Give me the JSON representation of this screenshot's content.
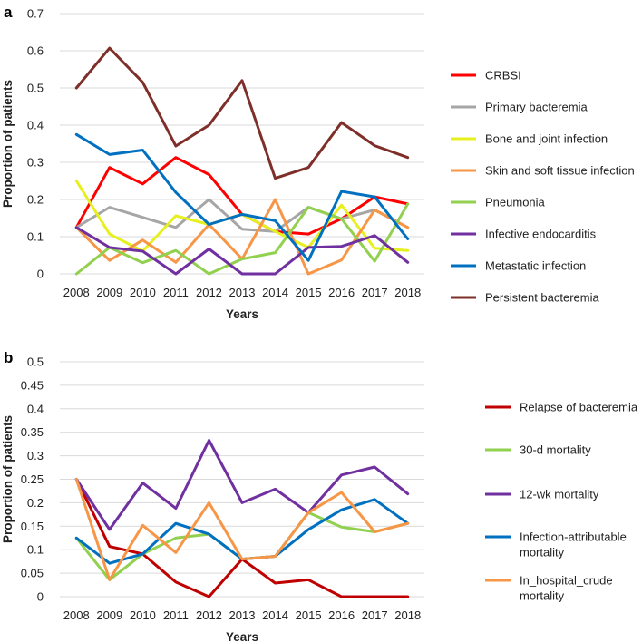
{
  "chart_data": [
    {
      "panel_label": "a",
      "type": "line",
      "xlabel": "Years",
      "ylabel": "Proportion of patients",
      "ylim": [
        0,
        0.7
      ],
      "yticks": [
        "0",
        "0.1",
        "0.2",
        "0.3",
        "0.4",
        "0.5",
        "0.6",
        "0.7"
      ],
      "grid": true,
      "legend_position": "right",
      "categories": [
        "2008",
        "2009",
        "2010",
        "2011",
        "2012",
        "2013",
        "2014",
        "2015",
        "2016",
        "2017",
        "2018"
      ],
      "series": [
        {
          "name": "CRBSI",
          "color": "#ff0000",
          "values": [
            0.125,
            0.286,
            0.242,
            0.313,
            0.267,
            0.16,
            0.114,
            0.107,
            0.148,
            0.207,
            0.188
          ]
        },
        {
          "name": "Primary bacteremia",
          "color": "#a6a6a6",
          "values": [
            0.125,
            0.179,
            0.152,
            0.125,
            0.2,
            0.12,
            0.114,
            0.179,
            0.148,
            0.172,
            0.125
          ]
        },
        {
          "name": "Bone and joint infection",
          "color": "#e6f01e",
          "values": [
            0.25,
            0.107,
            0.061,
            0.156,
            0.133,
            0.16,
            0.114,
            0.071,
            0.185,
            0.069,
            0.063
          ]
        },
        {
          "name": "Skin and soft tissue infection",
          "color": "#f79646",
          "values": [
            0.125,
            0.036,
            0.091,
            0.031,
            0.133,
            0.04,
            0.2,
            0.0,
            0.037,
            0.172,
            0.125
          ]
        },
        {
          "name": "Pneumonia",
          "color": "#92d050",
          "values": [
            0.0,
            0.071,
            0.03,
            0.063,
            0.0,
            0.04,
            0.057,
            0.179,
            0.148,
            0.034,
            0.188
          ]
        },
        {
          "name": "Infective endocarditis",
          "color": "#7030a0",
          "values": [
            0.125,
            0.071,
            0.061,
            0.0,
            0.067,
            0.0,
            0.0,
            0.071,
            0.074,
            0.103,
            0.031
          ]
        },
        {
          "name": "Metastatic infection",
          "color": "#0070c0",
          "values": [
            0.375,
            0.321,
            0.333,
            0.219,
            0.133,
            0.16,
            0.143,
            0.036,
            0.222,
            0.207,
            0.094
          ]
        },
        {
          "name": "Persistent bacteremia",
          "color": "#7f2f2a",
          "values": [
            0.5,
            0.607,
            0.515,
            0.344,
            0.4,
            0.52,
            0.257,
            0.286,
            0.407,
            0.345,
            0.313
          ]
        }
      ]
    },
    {
      "panel_label": "b",
      "type": "line",
      "xlabel": "Years",
      "ylabel": "Proportion of patients",
      "ylim": [
        0,
        0.5
      ],
      "yticks": [
        "0",
        "0.05",
        "0.1",
        "0.15",
        "0.2",
        "0.25",
        "0.3",
        "0.35",
        "0.4",
        "0.45",
        "0.5"
      ],
      "grid": true,
      "legend_position": "right",
      "categories": [
        "2008",
        "2009",
        "2010",
        "2011",
        "2012",
        "2013",
        "2014",
        "2015",
        "2016",
        "2017",
        "2018"
      ],
      "series": [
        {
          "name": "Relapse of bacteremia",
          "legend_lines": [
            "Relapse of bacteremia"
          ],
          "color": "#c00000",
          "values": [
            0.25,
            0.107,
            0.091,
            0.031,
            0.0,
            0.08,
            0.029,
            0.036,
            0.0,
            0.0,
            0.0
          ]
        },
        {
          "name": "30-d mortality",
          "legend_lines": [
            "30-d mortality"
          ],
          "color": "#92d050",
          "values": [
            0.125,
            0.036,
            0.091,
            0.125,
            0.133,
            0.08,
            0.086,
            0.179,
            0.148,
            0.138,
            0.156
          ]
        },
        {
          "name": "12-wk mortality",
          "legend_lines": [
            "12-wk mortality"
          ],
          "color": "#7030a0",
          "values": [
            0.25,
            0.143,
            0.242,
            0.188,
            0.333,
            0.2,
            0.229,
            0.179,
            0.259,
            0.276,
            0.219
          ]
        },
        {
          "name": "Infection-attributable mortality",
          "legend_lines": [
            "Infection-attributable",
            "mortality"
          ],
          "color": "#0070c0",
          "values": [
            0.125,
            0.071,
            0.091,
            0.156,
            0.133,
            0.08,
            0.086,
            0.143,
            0.185,
            0.207,
            0.156
          ]
        },
        {
          "name": "In_hospital_crude mortality",
          "legend_lines": [
            "In_hospital_crude",
            "mortality"
          ],
          "color": "#f79646",
          "values": [
            0.25,
            0.036,
            0.152,
            0.094,
            0.2,
            0.08,
            0.086,
            0.179,
            0.222,
            0.138,
            0.156
          ]
        }
      ]
    }
  ]
}
